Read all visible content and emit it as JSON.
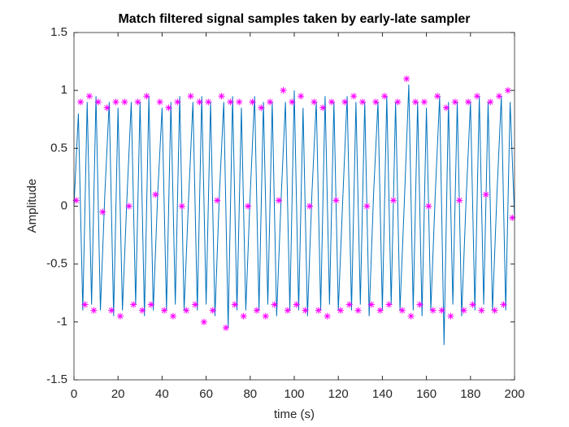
{
  "chart_data": {
    "type": "line",
    "title": "Match filtered signal samples taken by early-late sampler",
    "xlabel": "time (s)",
    "ylabel": "Amplitude",
    "xlim": [
      0,
      200
    ],
    "xticks": [
      0,
      20,
      40,
      60,
      80,
      100,
      120,
      140,
      160,
      180,
      200
    ],
    "ylim": [
      -1.5,
      1.5
    ],
    "yticks": [
      -1.5,
      -1,
      -0.5,
      0,
      0.5,
      1,
      1.5
    ],
    "grid": false,
    "series": [
      {
        "mode": "line",
        "color": "#0072bd",
        "x": [
          0,
          2,
          4,
          6,
          8,
          10,
          12,
          14,
          16,
          18,
          20,
          22,
          24,
          26,
          28,
          30,
          32,
          34,
          36,
          38,
          40,
          42,
          44,
          46,
          48,
          50,
          52,
          54,
          56,
          58,
          60,
          62,
          64,
          66,
          68,
          70,
          72,
          74,
          76,
          78,
          80,
          82,
          84,
          86,
          88,
          90,
          92,
          94,
          96,
          98,
          100,
          102,
          104,
          106,
          108,
          110,
          112,
          114,
          116,
          118,
          120,
          122,
          124,
          126,
          128,
          130,
          132,
          134,
          136,
          138,
          140,
          142,
          144,
          146,
          148,
          150,
          152,
          154,
          156,
          158,
          160,
          162,
          164,
          166,
          168,
          170,
          172,
          174,
          176,
          178,
          180,
          182,
          184,
          186,
          188,
          190,
          192,
          194,
          196,
          198,
          200
        ],
        "values": [
          0,
          0.8,
          -0.9,
          0.9,
          -0.85,
          0.95,
          -0.9,
          0.1,
          0.9,
          -0.95,
          0.85,
          -0.9,
          0.05,
          0.9,
          -0.85,
          0.9,
          -0.95,
          0.95,
          -0.9,
          0.1,
          0.85,
          -0.9,
          0.9,
          -0.85,
          0.95,
          -0.9,
          0.05,
          0.9,
          -0.9,
          0.95,
          -0.85,
          0.9,
          -0.95,
          0.1,
          0.9,
          -1.05,
          0.95,
          -0.9,
          0.85,
          -0.9,
          0.1,
          0.95,
          -0.9,
          0.9,
          -0.85,
          0.9,
          -0.95,
          0.05,
          0.9,
          -0.9,
          1.0,
          -0.9,
          0.85,
          -0.95,
          0.1,
          0.9,
          -0.9,
          0.95,
          -0.85,
          0.9,
          -0.9,
          0.05,
          0.95,
          -0.9,
          0.9,
          -0.85,
          0.9,
          -0.95,
          0.1,
          0.9,
          -0.9,
          0.95,
          -0.85,
          0.9,
          -0.9,
          0.05,
          1.05,
          -0.9,
          0.9,
          -0.95,
          0.85,
          -0.9,
          0.1,
          0.95,
          -1.2,
          0.9,
          -0.85,
          0.9,
          -0.95,
          0.05,
          0.9,
          -0.9,
          0.95,
          -0.85,
          0.9,
          -0.9,
          0.1,
          0.95,
          -0.9,
          0.9,
          -0.1
        ]
      },
      {
        "mode": "markers",
        "color": "#ff00ff",
        "x": [
          1,
          3,
          5,
          7,
          9,
          11,
          13,
          15,
          17,
          19,
          21,
          23,
          25,
          27,
          29,
          31,
          33,
          35,
          37,
          39,
          41,
          43,
          45,
          47,
          49,
          51,
          53,
          55,
          57,
          59,
          61,
          63,
          65,
          67,
          69,
          71,
          73,
          75,
          77,
          79,
          81,
          83,
          85,
          87,
          89,
          91,
          93,
          95,
          97,
          99,
          101,
          103,
          105,
          107,
          109,
          111,
          113,
          115,
          117,
          119,
          121,
          123,
          125,
          127,
          129,
          131,
          133,
          135,
          137,
          139,
          141,
          143,
          145,
          147,
          149,
          151,
          153,
          155,
          157,
          159,
          161,
          163,
          165,
          167,
          169,
          171,
          173,
          175,
          177,
          179,
          181,
          183,
          185,
          187,
          189,
          191,
          193,
          195,
          197,
          199
        ],
        "values": [
          0.05,
          0.9,
          -0.85,
          0.95,
          -0.9,
          0.9,
          -0.05,
          0.85,
          -0.9,
          0.9,
          -0.95,
          0.9,
          0,
          -0.85,
          0.9,
          -0.9,
          0.95,
          -0.85,
          0.1,
          0.9,
          -0.9,
          0.85,
          -0.95,
          0.9,
          0,
          -0.9,
          0.95,
          -0.85,
          0.9,
          -1.0,
          0.9,
          -0.9,
          0.05,
          0.95,
          -1.05,
          0.9,
          -0.85,
          0.9,
          -0.95,
          0,
          0.9,
          -0.9,
          0.85,
          -0.95,
          0.9,
          -0.85,
          0.05,
          1.0,
          -0.9,
          0.9,
          -0.85,
          0.95,
          -0.9,
          0,
          0.9,
          -0.9,
          0.85,
          -0.95,
          0.9,
          0.05,
          -0.9,
          0.9,
          -0.85,
          0.95,
          -0.9,
          0.9,
          0,
          -0.85,
          0.9,
          -0.9,
          0.95,
          -0.85,
          0.05,
          0.9,
          -0.9,
          1.1,
          -0.95,
          0.9,
          -0.85,
          0.9,
          0,
          -0.9,
          0.95,
          -0.9,
          0.85,
          -0.95,
          0.9,
          0.05,
          -0.9,
          0.9,
          -0.85,
          0.95,
          -0.9,
          0.1,
          0.9,
          -0.9,
          0.95,
          -0.85,
          1.0,
          -0.1
        ]
      }
    ]
  }
}
